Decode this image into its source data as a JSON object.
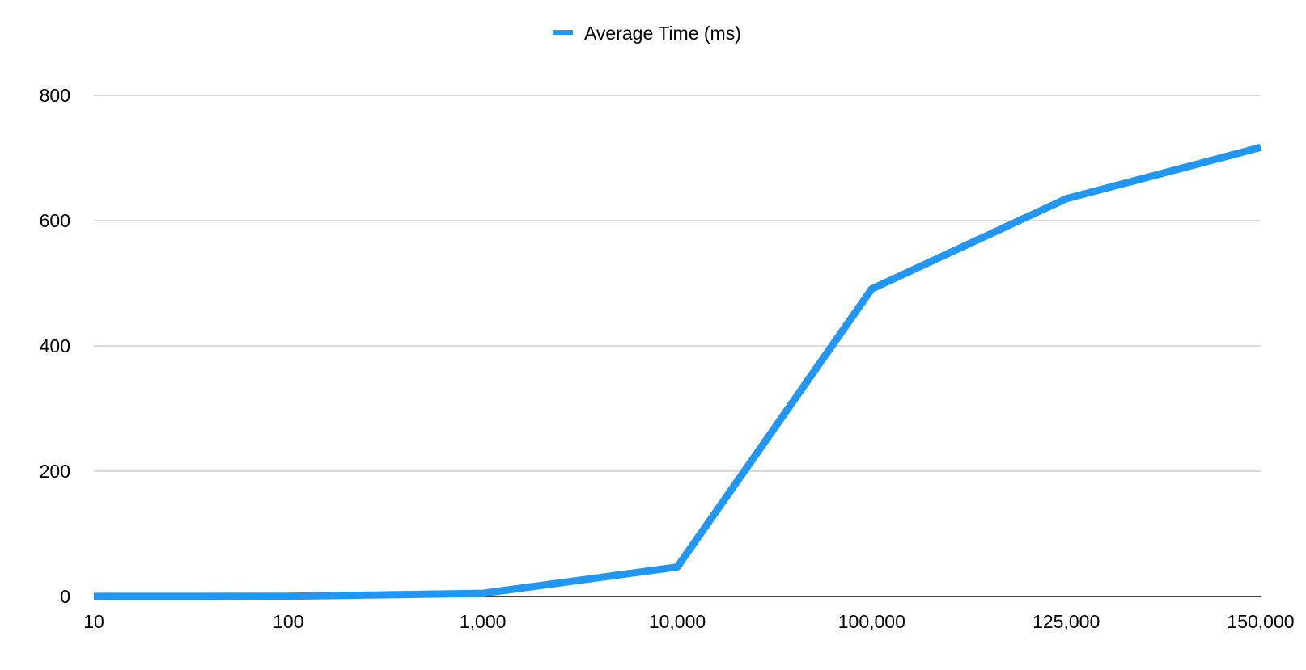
{
  "chart_data": {
    "type": "line",
    "title": "",
    "xlabel": "",
    "ylabel": "",
    "categories": [
      "10",
      "100",
      "1,000",
      "10,000",
      "100,000",
      "125,000",
      "150,000"
    ],
    "series": [
      {
        "name": "Average Time (ms)",
        "values": [
          0.1,
          0.3,
          5,
          47,
          491,
          635,
          717
        ]
      }
    ],
    "y_ticks": [
      "0",
      "200",
      "400",
      "600",
      "800"
    ],
    "ylim": [
      0,
      800
    ],
    "grid": true,
    "legend_position": "top-center",
    "colors": {
      "series": "#2196F3",
      "grid": "#b5b5b5",
      "axis": "#000000"
    }
  }
}
